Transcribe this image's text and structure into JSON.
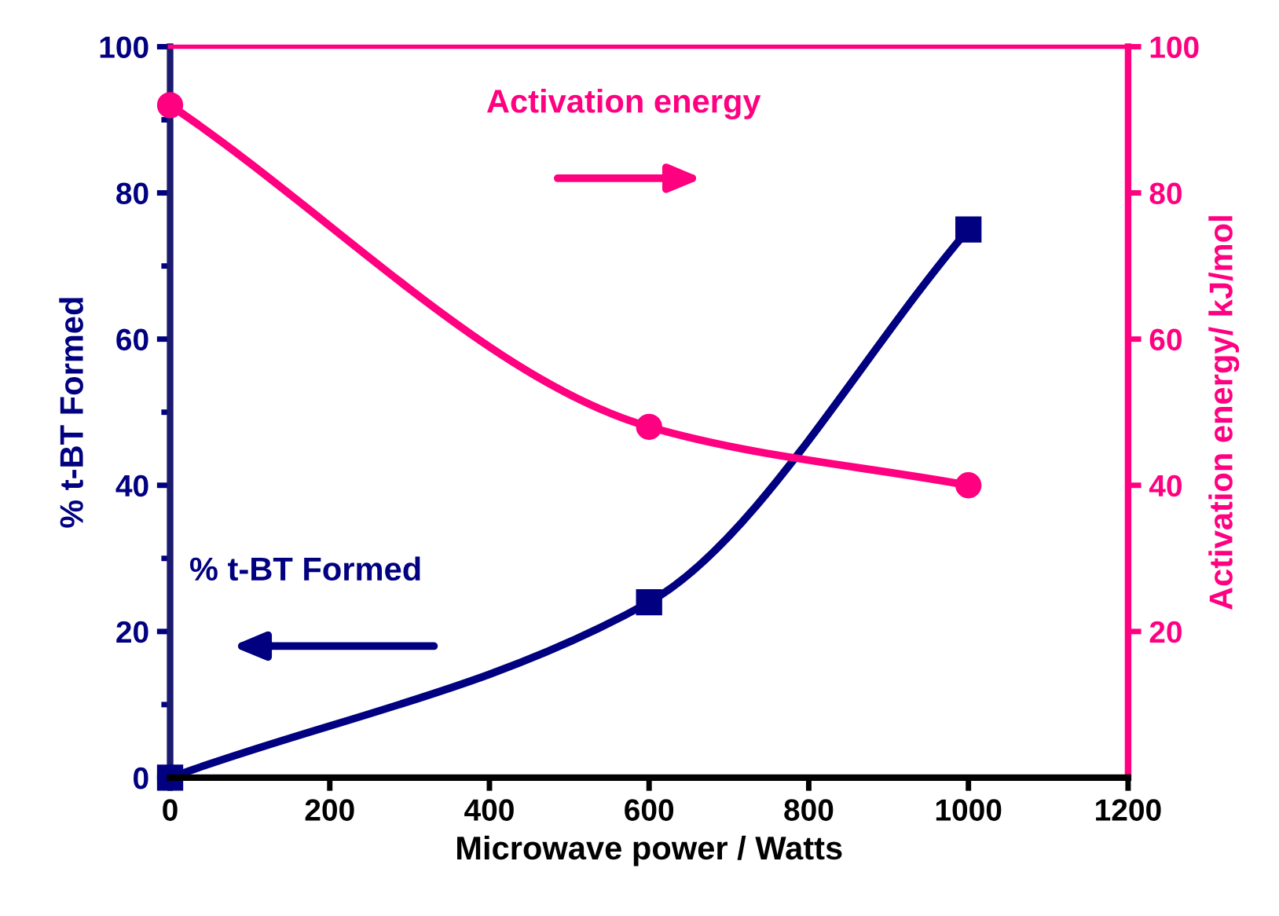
{
  "chart_data": {
    "type": "line",
    "xlabel": "Microwave power / Watts",
    "ylabel": "% t-BT Formed",
    "y2label": "Activation energy/ kJ/mol",
    "x": [
      0,
      600,
      1000
    ],
    "series": [
      {
        "color": "#000080",
        "values": [
          0,
          24,
          75
        ],
        "marker": "square"
      },
      {
        "color": "#ff0080",
        "values": [
          92,
          48,
          40
        ],
        "marker": "circle",
        "axis": "y2"
      }
    ],
    "xlim": [
      0,
      1200
    ],
    "xticks": [
      0,
      200,
      400,
      600,
      800,
      1000,
      1200
    ],
    "ylim": [
      0,
      100
    ],
    "yticks": [
      0,
      20,
      40,
      60,
      80,
      100
    ],
    "y2lim": [
      0,
      100
    ],
    "y2ticks": [
      20,
      40,
      60,
      80,
      100
    ],
    "annotations": [
      "Activation energy",
      "% t-BT Formed"
    ],
    "grid": false
  }
}
